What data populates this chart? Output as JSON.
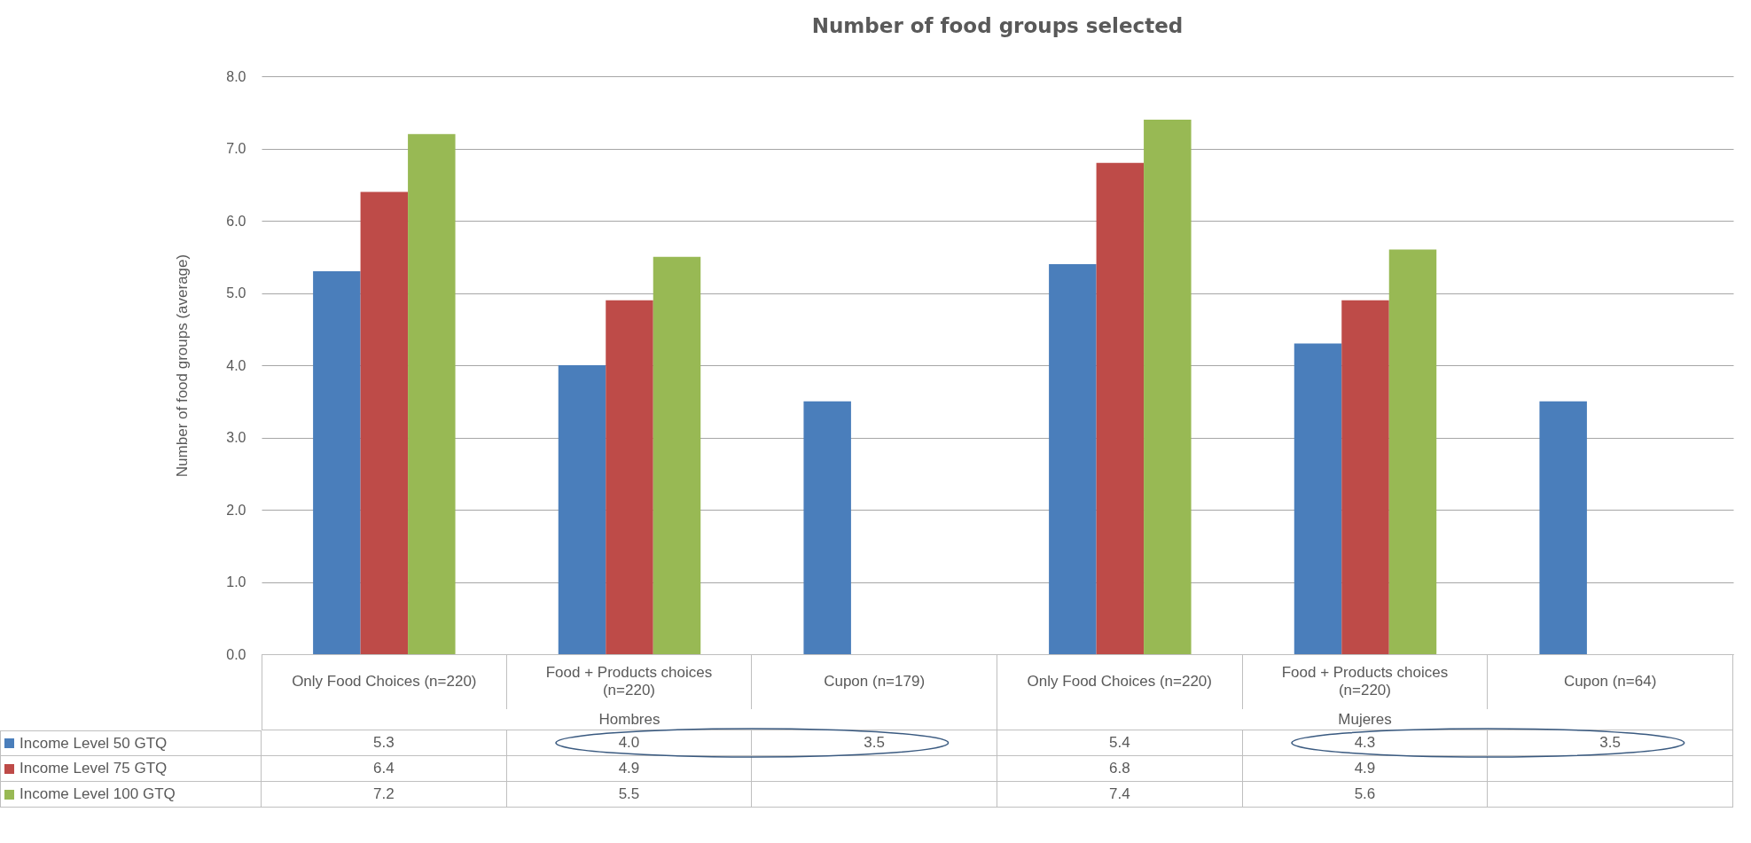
{
  "chart_data": {
    "type": "bar",
    "title": "Number of food groups selected",
    "ylabel": "Number of food groups (average)",
    "categories": [
      "Only Food Choices (n=220)",
      "Food + Products choices (n=220)",
      "Cupon (n=179)",
      "Only Food Choices (n=220)",
      "Food + Products choices (n=220)",
      "Cupon (n=64)"
    ],
    "annotations": [
      "Hombres",
      "Mujeres"
    ],
    "series": [
      {
        "name": "Income Level 50 GTQ",
        "color": "#4a7ebb",
        "values": [
          5.3,
          4.0,
          3.5,
          5.4,
          4.3,
          3.5
        ],
        "value_labels": [
          "5.3",
          "4.0",
          "3.5",
          "5.4",
          "4.3",
          "3.5"
        ]
      },
      {
        "name": "Income Level 75 GTQ",
        "color": "#be4b48",
        "values": [
          6.4,
          4.9,
          null,
          6.8,
          4.9,
          null
        ],
        "value_labels": [
          "6.4",
          "4.9",
          null,
          "6.8",
          "4.9",
          null
        ]
      },
      {
        "name": "Income Level 100 GTQ",
        "color": "#98b954",
        "values": [
          7.2,
          5.5,
          null,
          7.4,
          5.6,
          null
        ],
        "value_labels": [
          "7.2",
          "5.5",
          null,
          "7.4",
          "5.6",
          null
        ]
      }
    ],
    "ylim": [
      0,
      8
    ],
    "yticks": [
      {
        "value": 0,
        "label": "0.0"
      },
      {
        "value": 1,
        "label": "1.0"
      },
      {
        "value": 2,
        "label": "2.0"
      },
      {
        "value": 3,
        "label": "3.0"
      },
      {
        "value": 4,
        "label": "4.0"
      },
      {
        "value": 5,
        "label": "5.0"
      },
      {
        "value": 6,
        "label": "6.0"
      },
      {
        "value": 7,
        "label": "7.0"
      },
      {
        "value": 8,
        "label": "8.0"
      }
    ],
    "grid": true,
    "legend": "bottom"
  }
}
